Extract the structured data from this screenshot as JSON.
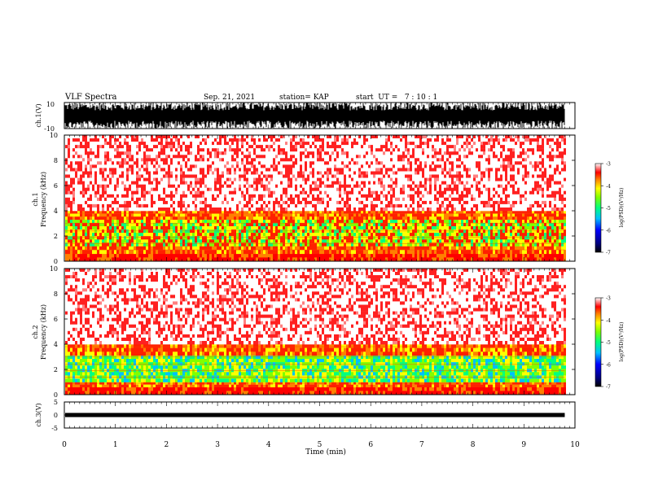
{
  "header": {
    "title": "VLF Spectra",
    "date": "Sep. 21, 2021",
    "station": "station= KAP",
    "start": "start  UT =   7 : 10 : 1"
  },
  "colors": {
    "spectrogram_scale": [
      "#000080",
      "#0000ff",
      "#0080ff",
      "#00ffff",
      "#00ff80",
      "#80ff00",
      "#ffff00",
      "#ff8000",
      "#ff0000",
      "#ffffff"
    ],
    "trace": "#000000",
    "background": "#ffffff"
  },
  "chart_data": [
    {
      "id": "ch1-waveform",
      "type": "line",
      "ylabel": "ch.1(V)",
      "ylim": [
        -10,
        10
      ],
      "yticks": [
        "10",
        "-10"
      ],
      "xlim": [
        0,
        10
      ],
      "note_values": "dense noisy waveform spanning roughly -10 to 10 V over 0-9.8 min",
      "x": [
        0,
        9.8
      ]
    },
    {
      "id": "ch1-spectrogram",
      "type": "heatmap",
      "ylabel": "ch.1\nFrequency (kHz)",
      "ylim": [
        0,
        10
      ],
      "yticks": [
        "0",
        "2",
        "4",
        "6",
        "8",
        "10"
      ],
      "xlim": [
        0,
        10
      ],
      "x_extent": [
        0,
        9.8
      ],
      "colorbar": {
        "label": "log(PSD)(V²/Hz)",
        "ticks": [
          "-3",
          "-4",
          "-5",
          "-6",
          "-7"
        ],
        "range": [
          -7,
          -3
        ]
      },
      "bands": [
        {
          "from": 0.0,
          "to": 0.6,
          "level": -3.6
        },
        {
          "from": 0.6,
          "to": 1.2,
          "level": -4.0
        },
        {
          "from": 1.2,
          "to": 3.3,
          "level": -4.6
        },
        {
          "from": 3.3,
          "to": 4.0,
          "level": -3.9
        },
        {
          "from": 4.0,
          "to": 10.0,
          "level": -3.2
        }
      ]
    },
    {
      "id": "ch2-spectrogram",
      "type": "heatmap",
      "ylabel": "ch.2\nFrequency (kHz)",
      "ylim": [
        0,
        10
      ],
      "yticks": [
        "0",
        "2",
        "4",
        "6",
        "8",
        "10"
      ],
      "xlim": [
        0,
        10
      ],
      "x_extent": [
        0,
        9.8
      ],
      "colorbar": {
        "label": "log(PSD)(V²/Hz)",
        "ticks": [
          "-3",
          "-4",
          "-5",
          "-6",
          "-7"
        ],
        "range": [
          -7,
          -3
        ]
      },
      "bands": [
        {
          "from": 0.0,
          "to": 0.6,
          "level": -3.6
        },
        {
          "from": 0.6,
          "to": 1.0,
          "level": -4.2
        },
        {
          "from": 1.0,
          "to": 3.1,
          "level": -4.9
        },
        {
          "from": 3.1,
          "to": 4.0,
          "level": -3.9
        },
        {
          "from": 4.0,
          "to": 10.0,
          "level": -3.2
        }
      ]
    },
    {
      "id": "ch3-waveform",
      "type": "line",
      "ylabel": "ch.3(V)",
      "ylim": [
        -5,
        5
      ],
      "yticks": [
        "5",
        "0",
        "-5"
      ],
      "xlim": [
        0,
        10
      ],
      "x": [
        0,
        9.8
      ],
      "y_band": [
        -0.8,
        0.8
      ],
      "xlabel": "Time (min)",
      "xticks": [
        "0",
        "1",
        "2",
        "3",
        "4",
        "5",
        "6",
        "7",
        "8",
        "9",
        "10"
      ]
    }
  ]
}
